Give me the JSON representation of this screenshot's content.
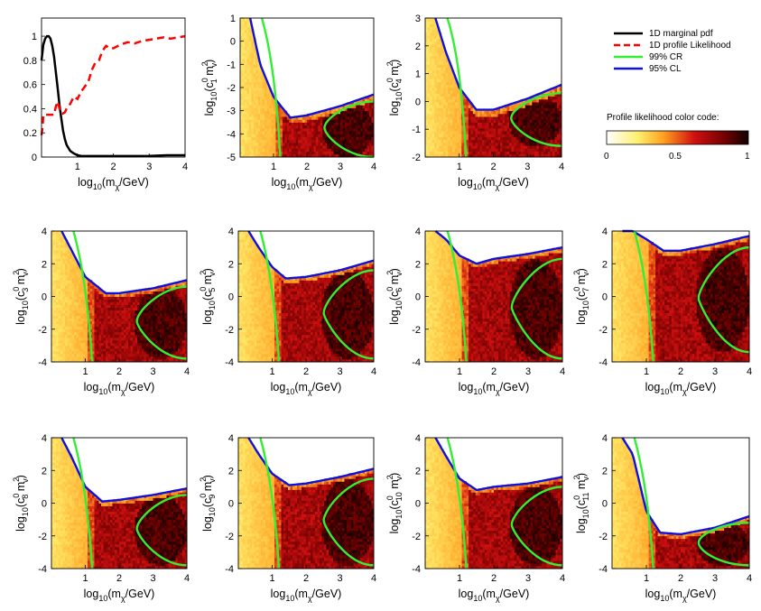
{
  "legend": {
    "items": [
      {
        "label": "1D marginal pdf",
        "color": "#000000",
        "dash": "solid"
      },
      {
        "label": "1D profile Likelihood",
        "color": "#ff0000",
        "dash": "dashed"
      },
      {
        "label": "99% CR",
        "color": "#33ee33",
        "dash": "solid"
      },
      {
        "label": "95% CL",
        "color": "#1010dd",
        "dash": "solid"
      }
    ]
  },
  "colorbar": {
    "title": "Profile likelihood color code:",
    "ticks": [
      "0",
      "0.5",
      "1"
    ],
    "colormap": "inverted hot (white → yellow → red → black)"
  },
  "chart_data": [
    {
      "type": "line",
      "panel": "1D",
      "xlabel": "log10(mχ/GeV)",
      "ylabel": "",
      "xlim": [
        0,
        4
      ],
      "ylim": [
        0,
        1.15
      ],
      "xticks": [
        "1",
        "2",
        "3",
        "4"
      ],
      "yticks": [
        "0",
        "0.2",
        "0.4",
        "0.6",
        "0.8",
        "1"
      ],
      "series": [
        {
          "name": "1D marginal pdf",
          "x": [
            0,
            0.05,
            0.1,
            0.15,
            0.2,
            0.25,
            0.3,
            0.35,
            0.4,
            0.45,
            0.5,
            0.55,
            0.6,
            0.65,
            0.7,
            0.8,
            0.9,
            1.0,
            1.1,
            1.2,
            1.5,
            2,
            2.5,
            3,
            3.5,
            4
          ],
          "y": [
            0.8,
            0.93,
            0.98,
            1.0,
            1.0,
            0.98,
            0.92,
            0.83,
            0.7,
            0.57,
            0.43,
            0.32,
            0.22,
            0.15,
            0.1,
            0.05,
            0.03,
            0.015,
            0.01,
            0.008,
            0.008,
            0.008,
            0.008,
            0.01,
            0.015,
            0.015
          ]
        },
        {
          "name": "1D profile Likelihood",
          "x": [
            0,
            0.03,
            0.05,
            0.1,
            0.2,
            0.3,
            0.35,
            0.4,
            0.45,
            0.5,
            0.55,
            0.6,
            0.65,
            0.7,
            0.8,
            0.9,
            1.0,
            1.1,
            1.2,
            1.3,
            1.4,
            1.5,
            1.6,
            1.7,
            1.8,
            1.9,
            2.0,
            2.2,
            2.4,
            2.6,
            2.8,
            3.0,
            3.2,
            3.4,
            3.6,
            3.8,
            4.0
          ],
          "y": [
            0.18,
            0.25,
            0.35,
            0.35,
            0.35,
            0.35,
            0.35,
            0.42,
            0.46,
            0.4,
            0.36,
            0.36,
            0.37,
            0.4,
            0.44,
            0.5,
            0.48,
            0.54,
            0.58,
            0.62,
            0.72,
            0.78,
            0.8,
            0.88,
            0.92,
            0.9,
            0.9,
            0.93,
            0.95,
            0.94,
            0.96,
            0.97,
            0.98,
            0.99,
            0.98,
            0.99,
            1.0
          ]
        }
      ]
    },
    {
      "type": "heatmap",
      "panel": "c1",
      "xlabel": "log10(mχ/GeV)",
      "ylabel": "log10(c1⁰ mv²)",
      "xlim": [
        0,
        4
      ],
      "ylim": [
        -5,
        1
      ],
      "yticks": [
        "-5",
        "-4",
        "-3",
        "-2",
        "-1",
        "0",
        "1"
      ],
      "green_boundary_x": 1.2,
      "blue_cl_y": [
        [
          0.3,
          1.0
        ],
        [
          0.6,
          -1.0
        ],
        [
          1.0,
          -2.4
        ],
        [
          1.5,
          -3.3
        ],
        [
          2.0,
          -3.2
        ],
        [
          3.0,
          -2.8
        ],
        [
          4.0,
          -2.3
        ]
      ],
      "cr_ellipse": {
        "x": [
          2.45,
          4.0
        ],
        "y": [
          -5.0,
          -2.6
        ]
      }
    },
    {
      "type": "heatmap",
      "panel": "c4",
      "xlabel": "log10(mχ/GeV)",
      "ylabel": "log10(c4⁰ mv²)",
      "xlim": [
        0,
        4
      ],
      "ylim": [
        -2,
        3
      ],
      "yticks": [
        "-2",
        "-1",
        "0",
        "1",
        "2",
        "3"
      ],
      "green_boundary_x": 1.2,
      "blue_cl_y": [
        [
          0.3,
          3.0
        ],
        [
          0.6,
          1.8
        ],
        [
          1.0,
          0.5
        ],
        [
          1.5,
          -0.3
        ],
        [
          2.0,
          -0.3
        ],
        [
          3.0,
          0.1
        ],
        [
          4.0,
          0.6
        ]
      ],
      "cr_ellipse": {
        "x": [
          2.45,
          4.0
        ],
        "y": [
          -1.6,
          0.3
        ]
      }
    },
    {
      "type": "heatmap",
      "panel": "c3",
      "xlabel": "log10(mχ/GeV)",
      "ylabel": "log10(c3⁰ mv²)",
      "xlim": [
        0,
        4
      ],
      "ylim": [
        -4,
        4
      ],
      "yticks": [
        "-4",
        "-2",
        "0",
        "2",
        "4"
      ],
      "green_boundary_x": 1.2,
      "blue_cl_y": [
        [
          0.3,
          4.0
        ],
        [
          0.6,
          2.8
        ],
        [
          1.0,
          1.2
        ],
        [
          1.6,
          0.2
        ],
        [
          2.0,
          0.2
        ],
        [
          3.0,
          0.5
        ],
        [
          4.0,
          1.0
        ]
      ],
      "cr_ellipse": {
        "x": [
          2.45,
          4.0
        ],
        "y": [
          -3.8,
          0.6
        ]
      }
    },
    {
      "type": "heatmap",
      "panel": "c5",
      "xlabel": "log10(mχ/GeV)",
      "ylabel": "log10(c5⁰ mv²)",
      "xlim": [
        0,
        4
      ],
      "ylim": [
        -4,
        4
      ],
      "yticks": [
        "-4",
        "-2",
        "0",
        "2",
        "4"
      ],
      "green_boundary_x": 1.2,
      "blue_cl_y": [
        [
          0.3,
          4.0
        ],
        [
          0.6,
          3.0
        ],
        [
          1.0,
          1.8
        ],
        [
          1.4,
          1.1
        ],
        [
          2.0,
          1.2
        ],
        [
          3.0,
          1.6
        ],
        [
          4.0,
          2.2
        ]
      ],
      "cr_ellipse": {
        "x": [
          2.45,
          4.0
        ],
        "y": [
          -3.8,
          1.6
        ]
      }
    },
    {
      "type": "heatmap",
      "panel": "c6",
      "xlabel": "log10(mχ/GeV)",
      "ylabel": "log10(c6⁰ mv²)",
      "xlim": [
        0,
        4
      ],
      "ylim": [
        -4,
        4
      ],
      "yticks": [
        "-4",
        "-2",
        "0",
        "2",
        "4"
      ],
      "green_boundary_x": 1.2,
      "blue_cl_y": [
        [
          0.3,
          4.0
        ],
        [
          0.6,
          3.5
        ],
        [
          1.0,
          2.5
        ],
        [
          1.5,
          2.0
        ],
        [
          2.0,
          2.3
        ],
        [
          3.0,
          2.6
        ],
        [
          4.0,
          3.0
        ]
      ],
      "cr_ellipse": {
        "x": [
          2.45,
          4.0
        ],
        "y": [
          -3.8,
          2.3
        ]
      }
    },
    {
      "type": "heatmap",
      "panel": "c7",
      "xlabel": "log10(mχ/GeV)",
      "ylabel": "log10(c7⁰ mv²)",
      "xlim": [
        0,
        4
      ],
      "ylim": [
        -4,
        4
      ],
      "yticks": [
        "-4",
        "-2",
        "0",
        "2",
        "4"
      ],
      "green_boundary_x": 1.2,
      "blue_cl_y": [
        [
          0.3,
          4.0
        ],
        [
          0.6,
          4.0
        ],
        [
          1.0,
          3.5
        ],
        [
          1.5,
          2.8
        ],
        [
          2.0,
          2.8
        ],
        [
          3.0,
          3.2
        ],
        [
          4.0,
          3.7
        ]
      ],
      "cr_ellipse": {
        "x": [
          2.45,
          4.0
        ],
        "y": [
          -3.4,
          3.0
        ]
      }
    },
    {
      "type": "heatmap",
      "panel": "c8",
      "xlabel": "log10(mχ/GeV)",
      "ylabel": "log10(c8⁰ mv²)",
      "xlim": [
        0,
        4
      ],
      "ylim": [
        -4,
        4
      ],
      "yticks": [
        "-4",
        "-2",
        "0",
        "2",
        "4"
      ],
      "green_boundary_x": 1.2,
      "blue_cl_y": [
        [
          0.3,
          4.0
        ],
        [
          0.6,
          2.8
        ],
        [
          1.0,
          1.0
        ],
        [
          1.5,
          0.1
        ],
        [
          2.0,
          0.2
        ],
        [
          3.0,
          0.5
        ],
        [
          4.0,
          0.9
        ]
      ],
      "cr_ellipse": {
        "x": [
          2.45,
          4.0
        ],
        "y": [
          -3.8,
          0.5
        ]
      }
    },
    {
      "type": "heatmap",
      "panel": "c9",
      "xlabel": "log10(mχ/GeV)",
      "ylabel": "log10(c9⁰ mv²)",
      "xlim": [
        0,
        4
      ],
      "ylim": [
        -4,
        4
      ],
      "yticks": [
        "-4",
        "-2",
        "0",
        "2",
        "4"
      ],
      "green_boundary_x": 1.2,
      "blue_cl_y": [
        [
          0.3,
          4.0
        ],
        [
          0.6,
          3.0
        ],
        [
          1.0,
          1.8
        ],
        [
          1.5,
          1.1
        ],
        [
          2.0,
          1.2
        ],
        [
          3.0,
          1.6
        ],
        [
          4.0,
          2.1
        ]
      ],
      "cr_ellipse": {
        "x": [
          2.45,
          4.0
        ],
        "y": [
          -3.8,
          1.5
        ]
      }
    },
    {
      "type": "heatmap",
      "panel": "c10",
      "xlabel": "log10(mχ/GeV)",
      "ylabel": "log10(c10⁰ mv²)",
      "xlim": [
        0,
        4
      ],
      "ylim": [
        -4,
        4
      ],
      "yticks": [
        "-4",
        "-2",
        "0",
        "2",
        "4"
      ],
      "green_boundary_x": 1.2,
      "blue_cl_y": [
        [
          0.3,
          4.0
        ],
        [
          0.6,
          2.9
        ],
        [
          1.0,
          1.5
        ],
        [
          1.5,
          0.8
        ],
        [
          2.0,
          1.0
        ],
        [
          3.0,
          1.2
        ],
        [
          4.0,
          1.6
        ]
      ],
      "cr_ellipse": {
        "x": [
          2.45,
          4.0
        ],
        "y": [
          -3.8,
          1.0
        ]
      }
    },
    {
      "type": "heatmap",
      "panel": "c11",
      "xlabel": "log10(mχ/GeV)",
      "ylabel": "log10(c11⁰ mv²)",
      "xlim": [
        0,
        4
      ],
      "ylim": [
        -4,
        4
      ],
      "yticks": [
        "-4",
        "-2",
        "0",
        "2",
        "4"
      ],
      "green_boundary_x": 1.2,
      "blue_cl_y": [
        [
          0.3,
          4.0
        ],
        [
          0.6,
          3.0
        ],
        [
          1.0,
          -0.5
        ],
        [
          1.4,
          -1.8
        ],
        [
          2.0,
          -1.9
        ],
        [
          3.0,
          -1.5
        ],
        [
          4.0,
          -0.8
        ]
      ],
      "cr_ellipse": {
        "x": [
          2.45,
          4.0
        ],
        "y": [
          -3.8,
          -1.2
        ]
      }
    }
  ]
}
